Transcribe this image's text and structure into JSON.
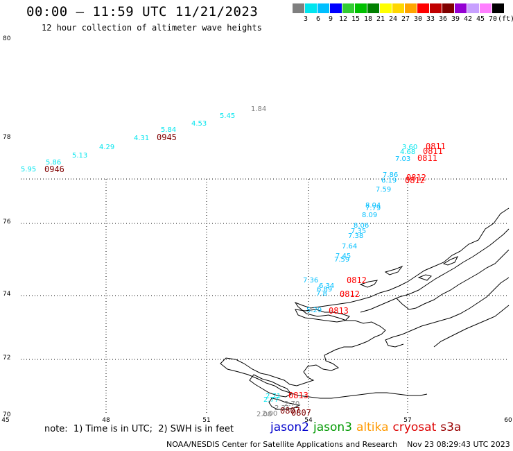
{
  "title": "00:00 – 11:59 UTC 11/21/2023",
  "subtitle": "12 hour collection of altimeter wave heights",
  "color_scale": {
    "labels": [
      "3",
      "6",
      "9",
      "12",
      "15",
      "18",
      "21",
      "24",
      "27",
      "30",
      "33",
      "36",
      "39",
      "42",
      "45",
      "70",
      "(ft)"
    ],
    "colors": [
      "#7f7f7f",
      "#00e5ee",
      "#00bfff",
      "#0000ff",
      "#32cd32",
      "#00c000",
      "#008000",
      "#ffff00",
      "#ffd700",
      "#ffa500",
      "#ff0000",
      "#c00000",
      "#800000",
      "#9400d3",
      "#c8a0ff",
      "#ff80ff",
      "#000000"
    ]
  },
  "axes": {
    "y_labels": [
      "80",
      "78",
      "76",
      "74",
      "72",
      "70"
    ],
    "x_labels": [
      "45",
      "48",
      "51",
      "54",
      "57",
      "60"
    ]
  },
  "swh_labels": [
    {
      "text": "1.84",
      "color": "#7f7f7f"
    },
    {
      "text": "5.45",
      "color": "#00e5ee"
    },
    {
      "text": "4.53",
      "color": "#00e5ee"
    },
    {
      "text": "5.84",
      "color": "#00e5ee"
    },
    {
      "text": "4.31",
      "color": "#00e5ee"
    },
    {
      "text": "4.29",
      "color": "#00e5ee"
    },
    {
      "text": "5.13",
      "color": "#00e5ee"
    },
    {
      "text": "5.86",
      "color": "#00e5ee"
    },
    {
      "text": "5.95",
      "color": "#00e5ee"
    },
    {
      "text": "3.60",
      "color": "#00e5ee"
    },
    {
      "text": "4.68",
      "color": "#00e5ee"
    },
    {
      "text": "7.03",
      "color": "#00bfff"
    },
    {
      "text": "7.86",
      "color": "#00bfff"
    },
    {
      "text": "6.19",
      "color": "#00bfff"
    },
    {
      "text": "7.59",
      "color": "#00bfff"
    },
    {
      "text": "8.04",
      "color": "#00bfff"
    },
    {
      "text": "7.79",
      "color": "#00bfff"
    },
    {
      "text": "8.09",
      "color": "#00bfff"
    },
    {
      "text": "8.06",
      "color": "#00bfff"
    },
    {
      "text": "7.35",
      "color": "#00bfff"
    },
    {
      "text": "7.38",
      "color": "#00bfff"
    },
    {
      "text": "7.64",
      "color": "#00bfff"
    },
    {
      "text": "7.45",
      "color": "#00bfff"
    },
    {
      "text": "7.59",
      "color": "#00bfff"
    },
    {
      "text": "7.36",
      "color": "#00bfff"
    },
    {
      "text": "6.34",
      "color": "#00bfff"
    },
    {
      "text": "6.89",
      "color": "#00bfff"
    },
    {
      "text": "7.8",
      "color": "#00bfff"
    },
    {
      "text": "5.29",
      "color": "#00bfff"
    },
    {
      "text": "2.71",
      "color": "#00e5ee"
    },
    {
      "text": "2.77",
      "color": "#00e5ee"
    },
    {
      "text": "2.31",
      "color": "#7f7f7f"
    },
    {
      "text": "2.70",
      "color": "#7f7f7f"
    },
    {
      "text": "2.00",
      "color": "#7f7f7f"
    },
    {
      "text": "2.00",
      "color": "#7f7f7f"
    }
  ],
  "time_labels": [
    {
      "text": "0945",
      "color": "#800000"
    },
    {
      "text": "0946",
      "color": "#800000"
    },
    {
      "text": "0811",
      "color": "#ff0000"
    },
    {
      "text": "0811",
      "color": "#ff0000"
    },
    {
      "text": "0811",
      "color": "#ff0000"
    },
    {
      "text": "0812",
      "color": "#ff0000"
    },
    {
      "text": "0812",
      "color": "#ff0000"
    },
    {
      "text": "0812",
      "color": "#ff0000"
    },
    {
      "text": "0812",
      "color": "#ff0000"
    },
    {
      "text": "0813",
      "color": "#ff0000"
    },
    {
      "text": "0813",
      "color": "#ff0000"
    },
    {
      "text": "0807",
      "color": "#800000"
    },
    {
      "text": "0807",
      "color": "#800000"
    }
  ],
  "note": "note:  1) Time is in UTC;  2) SWH is in feet",
  "legend": [
    {
      "label": "jason2",
      "color": "#0000cc"
    },
    {
      "label": "jason3",
      "color": "#009900"
    },
    {
      "label": "altika",
      "color": "#ff9900"
    },
    {
      "label": "cryosat",
      "color": "#dd0000"
    },
    {
      "label": "s3a",
      "color": "#990000"
    }
  ],
  "credit": "NOAA/NESDIS Center for Satellite Applications and Research    Nov 23 08:29:43 UTC 2023"
}
